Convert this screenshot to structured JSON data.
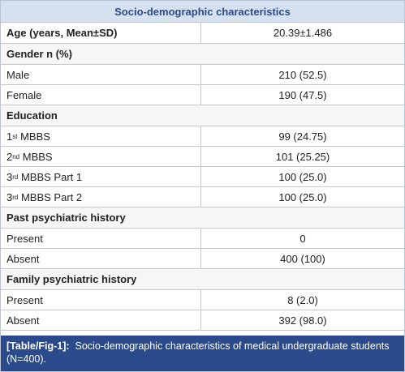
{
  "table": {
    "title": "Socio-demographic characteristics",
    "rows": [
      {
        "label": "Age (years, Mean±SD)",
        "value": "20.39±1.486"
      },
      {
        "section": "Gender n (%)"
      },
      {
        "label": "Male",
        "value": "210 (52.5)"
      },
      {
        "label": "Female",
        "value": "190 (47.5)"
      },
      {
        "section": "Education"
      },
      {
        "label": {
          "pre": "1",
          "sup": "st",
          "post": " MBBS"
        },
        "value": "99 (24.75)"
      },
      {
        "label": {
          "pre": "2",
          "sup": "nd",
          "post": " MBBS"
        },
        "value": "101 (25.25)"
      },
      {
        "label": {
          "pre": "3",
          "sup": "rd",
          "post": " MBBS Part 1"
        },
        "value": "100 (25.0)"
      },
      {
        "label": {
          "pre": "3",
          "sup": "rd",
          "post": " MBBS Part 2"
        },
        "value": "100 (25.0)"
      },
      {
        "section": "Past psychiatric history"
      },
      {
        "label": "Present",
        "value": "0"
      },
      {
        "label": "Absent",
        "value": "400 (100)"
      },
      {
        "section": "Family psychiatric history"
      },
      {
        "label": "Present",
        "value": "8 (2.0)"
      },
      {
        "label": "Absent",
        "value": "392 (98.0)"
      }
    ]
  },
  "caption": {
    "tag": "[Table/Fig-1]:",
    "text": "Socio-demographic characteristics of medical undergraduate students (N=400)."
  }
}
